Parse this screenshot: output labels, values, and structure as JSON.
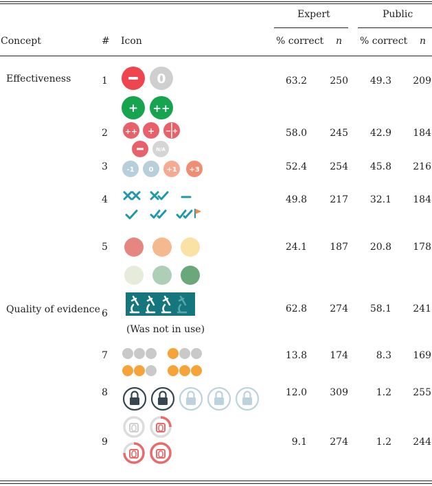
{
  "header": {
    "group_expert": "Expert",
    "group_public": "Public",
    "col_concept": "Concept",
    "col_num": "#",
    "col_icon": "Icon",
    "col_pct_expert": "% correct",
    "col_n_expert": "n",
    "col_pct_public": "% correct",
    "col_n_public": "n"
  },
  "concepts": {
    "effectiveness": "Effectiveness",
    "quality": "Quality of evidence"
  },
  "rows": [
    {
      "num": "1",
      "expert_pct": "63.2",
      "expert_n": "250",
      "public_pct": "49.3",
      "public_n": "209"
    },
    {
      "num": "2",
      "expert_pct": "58.0",
      "expert_n": "245",
      "public_pct": "42.9",
      "public_n": "184"
    },
    {
      "num": "3",
      "expert_pct": "52.4",
      "expert_n": "254",
      "public_pct": "45.8",
      "public_n": "216"
    },
    {
      "num": "4",
      "expert_pct": "49.8",
      "expert_n": "217",
      "public_pct": "32.1",
      "public_n": "184"
    },
    {
      "num": "5",
      "expert_pct": "24.1",
      "expert_n": "187",
      "public_pct": "20.8",
      "public_n": "178"
    },
    {
      "num": "6",
      "expert_pct": "62.8",
      "expert_n": "274",
      "public_pct": "58.1",
      "public_n": "241"
    },
    {
      "num": "7",
      "expert_pct": "13.8",
      "expert_n": "174",
      "public_pct": "8.3",
      "public_n": "169"
    },
    {
      "num": "8",
      "expert_pct": "12.0",
      "expert_n": "309",
      "public_pct": "1.2",
      "public_n": "255"
    },
    {
      "num": "9",
      "expert_pct": "9.1",
      "expert_n": "274",
      "public_pct": "1.2",
      "public_n": "244"
    }
  ],
  "icons": {
    "row2_na_label": "N/A",
    "row3_labels": [
      "-1",
      "0",
      "+1",
      "+3"
    ],
    "row6_note": "(Was not in use)"
  },
  "colors": {
    "red": "#e8505b",
    "green": "#1aa052",
    "grey": "#c8c8c8",
    "teal": "#1d9aa6",
    "orange": "#f6a33a"
  }
}
